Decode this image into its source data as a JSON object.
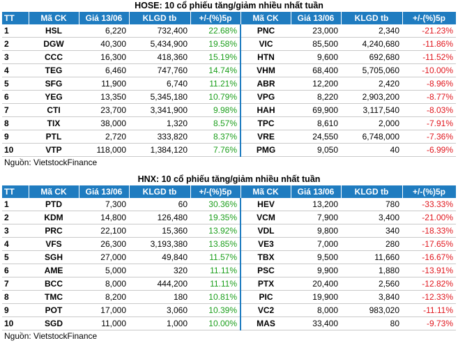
{
  "source": "Nguồn: VietstockFinance",
  "columns": [
    "TT",
    "Mã CK",
    "Giá 13/06",
    "KLGD tb",
    "+/-(%)5p",
    "Mã CK",
    "Giá 13/06",
    "KLGD tb",
    "+/-(%)5p"
  ],
  "colors": {
    "header_bg": "#1f7cc0",
    "up": "#1a9e1a",
    "down": "#e0151c"
  },
  "hose": {
    "title": "HOSE: 10 cổ phiếu tăng/giảm nhiều nhất tuần",
    "rows": [
      {
        "tt": "1",
        "up_ck": "HSL",
        "up_price": "6,220",
        "up_vol": "732,400",
        "up_pct": "22.68%",
        "dn_ck": "PNC",
        "dn_price": "23,000",
        "dn_vol": "2,340",
        "dn_pct": "-21.23%"
      },
      {
        "tt": "2",
        "up_ck": "DGW",
        "up_price": "40,300",
        "up_vol": "5,434,900",
        "up_pct": "19.58%",
        "dn_ck": "VIC",
        "dn_price": "85,500",
        "dn_vol": "4,240,680",
        "dn_pct": "-11.86%"
      },
      {
        "tt": "3",
        "up_ck": "CCC",
        "up_price": "16,300",
        "up_vol": "418,360",
        "up_pct": "15.19%",
        "dn_ck": "HTN",
        "dn_price": "9,600",
        "dn_vol": "692,680",
        "dn_pct": "-11.52%"
      },
      {
        "tt": "4",
        "up_ck": "TEG",
        "up_price": "6,460",
        "up_vol": "747,760",
        "up_pct": "14.74%",
        "dn_ck": "VHM",
        "dn_price": "68,400",
        "dn_vol": "5,705,060",
        "dn_pct": "-10.00%"
      },
      {
        "tt": "5",
        "up_ck": "SFG",
        "up_price": "11,900",
        "up_vol": "6,740",
        "up_pct": "11.21%",
        "dn_ck": "ABR",
        "dn_price": "12,200",
        "dn_vol": "2,420",
        "dn_pct": "-8.96%"
      },
      {
        "tt": "6",
        "up_ck": "YEG",
        "up_price": "13,350",
        "up_vol": "5,345,180",
        "up_pct": "10.79%",
        "dn_ck": "VPG",
        "dn_price": "8,220",
        "dn_vol": "2,903,200",
        "dn_pct": "-8.77%"
      },
      {
        "tt": "7",
        "up_ck": "CTI",
        "up_price": "23,700",
        "up_vol": "3,341,900",
        "up_pct": "9.98%",
        "dn_ck": "HAH",
        "dn_price": "69,900",
        "dn_vol": "3,117,540",
        "dn_pct": "-8.03%"
      },
      {
        "tt": "8",
        "up_ck": "TIX",
        "up_price": "38,000",
        "up_vol": "1,320",
        "up_pct": "8.57%",
        "dn_ck": "TPC",
        "dn_price": "8,610",
        "dn_vol": "2,000",
        "dn_pct": "-7.91%"
      },
      {
        "tt": "9",
        "up_ck": "PTL",
        "up_price": "2,720",
        "up_vol": "333,820",
        "up_pct": "8.37%",
        "dn_ck": "VRE",
        "dn_price": "24,550",
        "dn_vol": "6,748,000",
        "dn_pct": "-7.36%"
      },
      {
        "tt": "10",
        "up_ck": "VTP",
        "up_price": "118,000",
        "up_vol": "1,384,120",
        "up_pct": "7.76%",
        "dn_ck": "PMG",
        "dn_price": "9,050",
        "dn_vol": "40",
        "dn_pct": "-6.99%"
      }
    ]
  },
  "hnx": {
    "title": "HNX: 10 cổ phiếu tăng/giảm nhiều nhất tuần",
    "rows": [
      {
        "tt": "1",
        "up_ck": "PTD",
        "up_price": "7,300",
        "up_vol": "60",
        "up_pct": "30.36%",
        "dn_ck": "HEV",
        "dn_price": "13,200",
        "dn_vol": "780",
        "dn_pct": "-33.33%"
      },
      {
        "tt": "2",
        "up_ck": "KDM",
        "up_price": "14,800",
        "up_vol": "126,480",
        "up_pct": "19.35%",
        "dn_ck": "VCM",
        "dn_price": "7,900",
        "dn_vol": "3,400",
        "dn_pct": "-21.00%"
      },
      {
        "tt": "3",
        "up_ck": "PRC",
        "up_price": "22,100",
        "up_vol": "15,360",
        "up_pct": "13.92%",
        "dn_ck": "VDL",
        "dn_price": "9,800",
        "dn_vol": "340",
        "dn_pct": "-18.33%"
      },
      {
        "tt": "4",
        "up_ck": "VFS",
        "up_price": "26,300",
        "up_vol": "3,193,380",
        "up_pct": "13.85%",
        "dn_ck": "VE3",
        "dn_price": "7,000",
        "dn_vol": "280",
        "dn_pct": "-17.65%"
      },
      {
        "tt": "5",
        "up_ck": "SGH",
        "up_price": "27,000",
        "up_vol": "49,840",
        "up_pct": "11.57%",
        "dn_ck": "TBX",
        "dn_price": "9,500",
        "dn_vol": "11,660",
        "dn_pct": "-16.67%"
      },
      {
        "tt": "6",
        "up_ck": "AME",
        "up_price": "5,000",
        "up_vol": "320",
        "up_pct": "11.11%",
        "dn_ck": "PSC",
        "dn_price": "9,900",
        "dn_vol": "1,880",
        "dn_pct": "-13.91%"
      },
      {
        "tt": "7",
        "up_ck": "BCC",
        "up_price": "8,000",
        "up_vol": "444,200",
        "up_pct": "11.11%",
        "dn_ck": "PTX",
        "dn_price": "20,400",
        "dn_vol": "2,560",
        "dn_pct": "-12.82%"
      },
      {
        "tt": "8",
        "up_ck": "TMC",
        "up_price": "8,200",
        "up_vol": "180",
        "up_pct": "10.81%",
        "dn_ck": "PIC",
        "dn_price": "19,900",
        "dn_vol": "3,840",
        "dn_pct": "-12.33%"
      },
      {
        "tt": "9",
        "up_ck": "POT",
        "up_price": "17,000",
        "up_vol": "3,060",
        "up_pct": "10.39%",
        "dn_ck": "VC2",
        "dn_price": "8,000",
        "dn_vol": "983,020",
        "dn_pct": "-11.11%"
      },
      {
        "tt": "10",
        "up_ck": "SGD",
        "up_price": "11,000",
        "up_vol": "1,000",
        "up_pct": "10.00%",
        "dn_ck": "MAS",
        "dn_price": "33,400",
        "dn_vol": "80",
        "dn_pct": "-9.73%"
      }
    ]
  }
}
